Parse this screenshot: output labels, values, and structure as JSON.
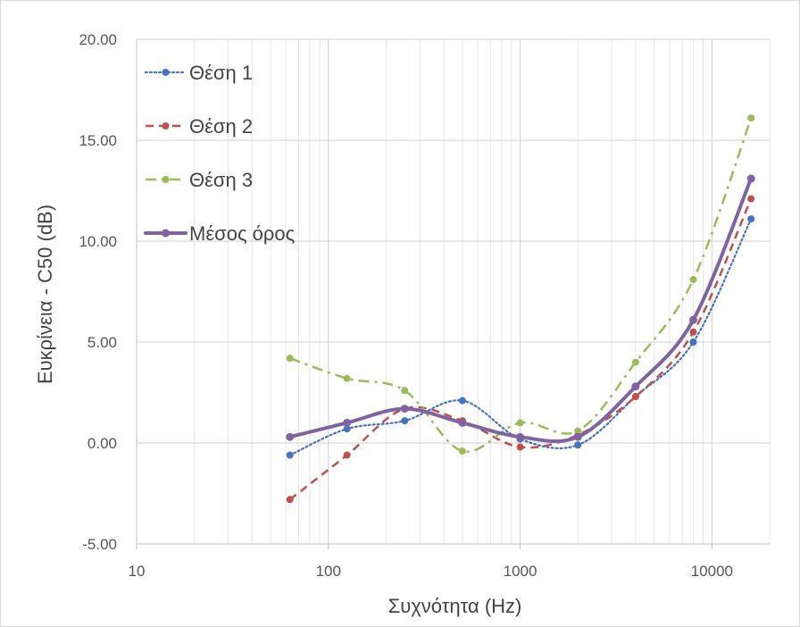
{
  "chart_data": {
    "type": "line",
    "title": "",
    "xlabel": "Συχνότητα (Hz)",
    "ylabel": "Ευκρίνεια - C50 (dB)",
    "x_scale": "log",
    "xlim": [
      10,
      20000
    ],
    "ylim": [
      -5,
      20
    ],
    "x_ticks": [
      10,
      100,
      1000,
      10000
    ],
    "x_tick_labels": [
      "10",
      "100",
      "1000",
      "10000"
    ],
    "y_ticks": [
      -5,
      0,
      5,
      10,
      15,
      20
    ],
    "y_tick_labels": [
      "-5.00",
      "0.00",
      "5.00",
      "10.00",
      "15.00",
      "20.00"
    ],
    "grid": "log minor vertical + major horizontal",
    "legend_position": "top-left",
    "x": [
      63,
      125,
      250,
      500,
      1000,
      2000,
      4000,
      8000,
      16000
    ],
    "series": [
      {
        "name": "Θέση 1",
        "style": "dotted",
        "color": "#4472C4",
        "values": [
          -0.6,
          0.7,
          1.1,
          2.1,
          0.2,
          -0.1,
          2.3,
          5.0,
          11.1
        ]
      },
      {
        "name": "Θέση 2",
        "style": "dashed",
        "color": "#C0504D",
        "values": [
          -2.8,
          -0.6,
          1.7,
          1.1,
          -0.2,
          0.4,
          2.3,
          5.5,
          12.1
        ]
      },
      {
        "name": "Θέση 3",
        "style": "dashdot",
        "color": "#9BBB59",
        "values": [
          4.2,
          3.2,
          2.6,
          -0.4,
          1.0,
          0.6,
          4.0,
          8.1,
          16.1
        ]
      },
      {
        "name": "Μέσος όρος",
        "style": "solid",
        "color": "#8064A2",
        "values": [
          0.3,
          1.0,
          1.7,
          1.0,
          0.3,
          0.3,
          2.8,
          6.1,
          13.1
        ]
      }
    ]
  }
}
